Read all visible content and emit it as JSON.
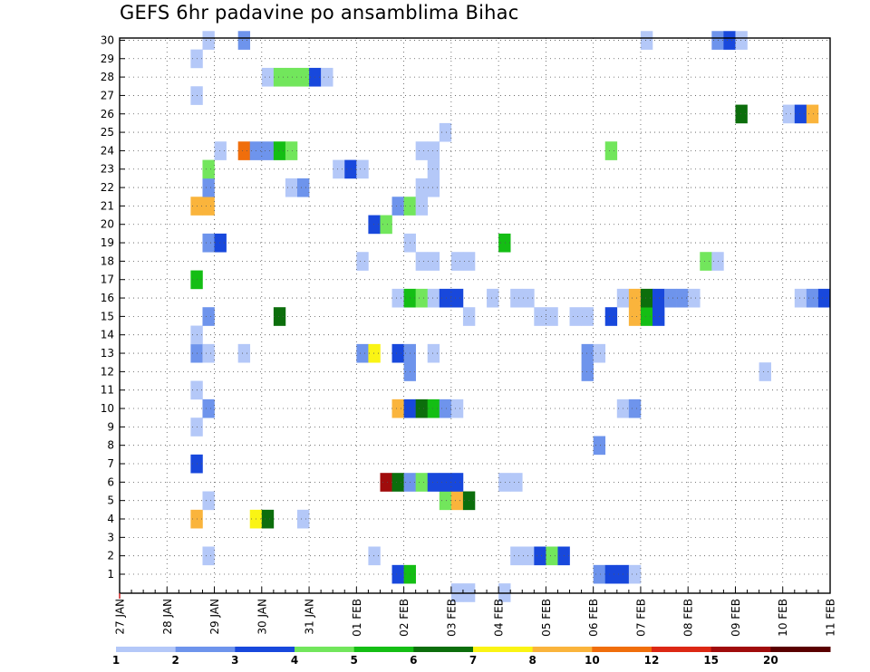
{
  "chart_data": {
    "type": "heatmap",
    "title": "GEFS 6hr padavine po ansamblima Bihac",
    "y_categories": [
      "1",
      "2",
      "3",
      "4",
      "5",
      "6",
      "7",
      "8",
      "9",
      "10",
      "11",
      "12",
      "13",
      "14",
      "15",
      "16",
      "17",
      "18",
      "19",
      "20",
      "21",
      "22",
      "23",
      "24",
      "25",
      "26",
      "27",
      "28",
      "29",
      "30"
    ],
    "x_tick_labels": [
      "27 JAN",
      "28 JAN",
      "29 JAN",
      "30 JAN",
      "31 JAN",
      "01 FEB",
      "02 FEB",
      "03 FEB",
      "04 FEB",
      "05 FEB",
      "06 FEB",
      "07 FEB",
      "08 FEB",
      "09 FEB",
      "10 FEB",
      "11 FEB"
    ],
    "x_step_hours": 6,
    "grid": true,
    "colorbar": {
      "levels": [
        "1",
        "2",
        "3",
        "4",
        "5",
        "6",
        "7",
        "8",
        "10",
        "12",
        "15",
        "20"
      ],
      "colors": [
        "#b4c8f8",
        "#6e94ec",
        "#1848dc",
        "#72e65c",
        "#14be14",
        "#0c6e0c",
        "#faf414",
        "#fab43c",
        "#f06e0c",
        "#dc2814",
        "#a00c0c",
        "#5a0000"
      ]
    },
    "cells": [
      [
        1,
        23,
        3
      ],
      [
        1,
        24,
        5
      ],
      [
        1,
        40,
        2
      ],
      [
        1,
        41,
        3
      ],
      [
        1,
        42,
        3
      ],
      [
        1,
        43,
        1
      ],
      [
        2,
        7,
        1
      ],
      [
        2,
        21,
        1
      ],
      [
        2,
        33,
        1
      ],
      [
        2,
        34,
        1
      ],
      [
        2,
        35,
        3
      ],
      [
        2,
        36,
        4
      ],
      [
        2,
        37,
        3
      ],
      [
        4,
        6,
        8
      ],
      [
        4,
        11,
        7
      ],
      [
        4,
        12,
        6
      ],
      [
        4,
        15,
        1
      ],
      [
        5,
        7,
        1
      ],
      [
        5,
        27,
        4
      ],
      [
        5,
        28,
        8
      ],
      [
        5,
        29,
        6
      ],
      [
        6,
        22,
        11
      ],
      [
        6,
        23,
        6
      ],
      [
        6,
        24,
        2
      ],
      [
        6,
        25,
        4
      ],
      [
        6,
        26,
        3
      ],
      [
        6,
        27,
        3
      ],
      [
        6,
        28,
        3
      ],
      [
        6,
        32,
        1
      ],
      [
        6,
        33,
        1
      ],
      [
        7,
        6,
        3
      ],
      [
        8,
        40,
        2
      ],
      [
        9,
        6,
        1
      ],
      [
        10,
        7,
        2
      ],
      [
        10,
        23,
        8
      ],
      [
        10,
        24,
        3
      ],
      [
        10,
        25,
        6
      ],
      [
        10,
        26,
        5
      ],
      [
        10,
        27,
        2
      ],
      [
        10,
        28,
        1
      ],
      [
        10,
        42,
        1
      ],
      [
        10,
        43,
        2
      ],
      [
        11,
        6,
        1
      ],
      [
        12,
        24,
        2
      ],
      [
        12,
        39,
        2
      ],
      [
        12,
        54,
        1
      ],
      [
        13,
        6,
        2
      ],
      [
        13,
        7,
        1
      ],
      [
        13,
        10,
        1
      ],
      [
        13,
        20,
        2
      ],
      [
        13,
        21,
        7
      ],
      [
        13,
        23,
        3
      ],
      [
        13,
        24,
        2
      ],
      [
        13,
        26,
        1
      ],
      [
        13,
        39,
        2
      ],
      [
        13,
        40,
        1
      ],
      [
        14,
        6,
        1
      ],
      [
        15,
        7,
        2
      ],
      [
        15,
        13,
        6
      ],
      [
        15,
        29,
        1
      ],
      [
        15,
        35,
        1
      ],
      [
        15,
        36,
        1
      ],
      [
        15,
        38,
        1
      ],
      [
        15,
        39,
        1
      ],
      [
        15,
        41,
        3
      ],
      [
        15,
        43,
        8
      ],
      [
        15,
        44,
        5
      ],
      [
        15,
        45,
        3
      ],
      [
        16,
        23,
        1
      ],
      [
        16,
        24,
        5
      ],
      [
        16,
        25,
        4
      ],
      [
        16,
        26,
        1
      ],
      [
        16,
        27,
        3
      ],
      [
        16,
        28,
        3
      ],
      [
        16,
        31,
        1
      ],
      [
        16,
        33,
        1
      ],
      [
        16,
        34,
        1
      ],
      [
        16,
        42,
        1
      ],
      [
        16,
        43,
        8
      ],
      [
        16,
        44,
        6
      ],
      [
        16,
        45,
        3
      ],
      [
        16,
        46,
        2
      ],
      [
        16,
        47,
        2
      ],
      [
        16,
        48,
        1
      ],
      [
        16,
        57,
        1
      ],
      [
        16,
        58,
        2
      ],
      [
        16,
        59,
        3
      ],
      [
        17,
        6,
        5
      ],
      [
        18,
        20,
        1
      ],
      [
        18,
        25,
        1
      ],
      [
        18,
        26,
        1
      ],
      [
        18,
        28,
        1
      ],
      [
        18,
        29,
        1
      ],
      [
        18,
        49,
        4
      ],
      [
        18,
        50,
        1
      ],
      [
        19,
        7,
        2
      ],
      [
        19,
        8,
        3
      ],
      [
        19,
        24,
        1
      ],
      [
        19,
        32,
        5
      ],
      [
        20,
        21,
        3
      ],
      [
        20,
        22,
        4
      ],
      [
        21,
        6,
        8
      ],
      [
        21,
        7,
        8
      ],
      [
        21,
        23,
        2
      ],
      [
        21,
        24,
        4
      ],
      [
        21,
        25,
        1
      ],
      [
        22,
        7,
        2
      ],
      [
        22,
        14,
        1
      ],
      [
        22,
        15,
        2
      ],
      [
        22,
        25,
        1
      ],
      [
        22,
        26,
        1
      ],
      [
        23,
        7,
        4
      ],
      [
        23,
        18,
        1
      ],
      [
        23,
        19,
        3
      ],
      [
        23,
        20,
        1
      ],
      [
        23,
        26,
        1
      ],
      [
        24,
        8,
        1
      ],
      [
        24,
        10,
        9
      ],
      [
        24,
        11,
        2
      ],
      [
        24,
        12,
        2
      ],
      [
        24,
        13,
        5
      ],
      [
        24,
        14,
        4
      ],
      [
        24,
        25,
        1
      ],
      [
        24,
        26,
        1
      ],
      [
        24,
        41,
        4
      ],
      [
        25,
        27,
        1
      ],
      [
        26,
        52,
        6
      ],
      [
        26,
        56,
        1
      ],
      [
        26,
        57,
        3
      ],
      [
        26,
        58,
        8
      ],
      [
        27,
        6,
        1
      ],
      [
        28,
        12,
        1
      ],
      [
        28,
        13,
        4
      ],
      [
        28,
        14,
        4
      ],
      [
        28,
        15,
        4
      ],
      [
        28,
        16,
        3
      ],
      [
        28,
        17,
        1
      ],
      [
        29,
        6,
        1
      ],
      [
        30,
        7,
        1
      ],
      [
        30,
        10,
        2
      ],
      [
        30,
        44,
        1
      ],
      [
        30,
        50,
        2
      ],
      [
        30,
        51,
        3
      ],
      [
        30,
        52,
        1
      ],
      [
        0,
        28,
        1
      ],
      [
        0,
        29,
        1
      ],
      [
        0,
        32,
        1
      ]
    ]
  }
}
